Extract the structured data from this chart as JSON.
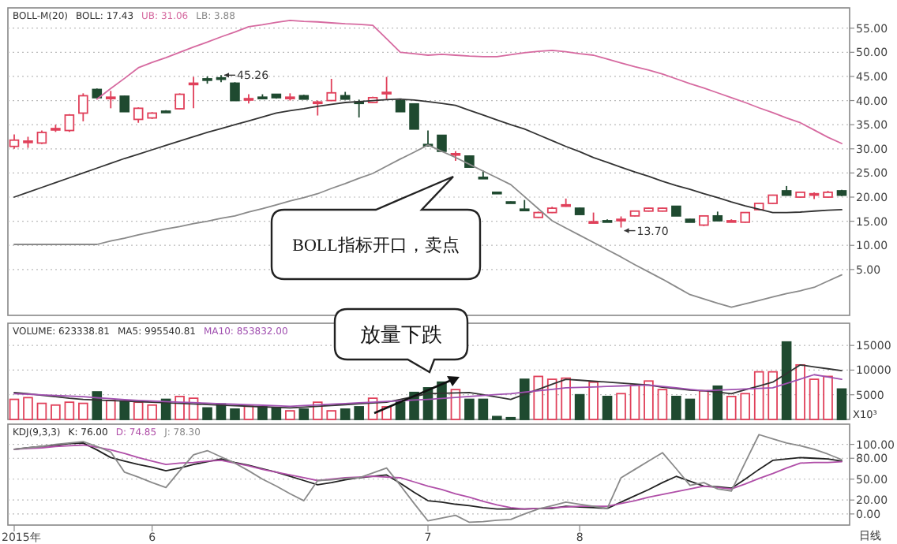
{
  "chart_data": [
    {
      "type": "candlestick",
      "title": "BOLL-M(20)",
      "legend": "top left",
      "tick_labels": "y",
      "grid": "y",
      "categories": [
        null,
        null,
        null,
        null,
        null,
        null,
        null,
        null,
        null,
        null,
        null,
        null,
        null,
        null,
        null,
        null,
        null,
        null,
        null,
        null,
        null,
        null,
        null,
        null,
        null,
        null,
        null,
        null,
        null,
        null,
        null,
        null,
        null,
        null,
        null,
        null,
        null,
        null,
        null,
        null,
        null,
        null,
        null,
        null,
        null,
        null,
        null,
        null,
        null,
        null,
        null,
        null,
        null,
        null,
        null,
        null,
        null,
        null,
        null,
        null,
        null
      ],
      "ohlc": [
        [
          30.5,
          33,
          30,
          31.8
        ],
        [
          31.4,
          32.5,
          30.2,
          31.6
        ],
        [
          31.2,
          33.8,
          31,
          33.4
        ],
        [
          34,
          35,
          33.5,
          34.2
        ],
        [
          33.8,
          37.2,
          33.5,
          37
        ],
        [
          37.4,
          41.5,
          35.7,
          41
        ],
        [
          42.3,
          42.5,
          40.6,
          40.6
        ],
        [
          40.5,
          42,
          38.4,
          40.7
        ],
        [
          40.9,
          41,
          37.7,
          37.7
        ],
        [
          36.1,
          38.6,
          35.4,
          38.4
        ],
        [
          36.4,
          37.6,
          36.2,
          37.4
        ],
        [
          37.8,
          38,
          37.5,
          37.7
        ],
        [
          38.3,
          41.5,
          38.2,
          41.3
        ],
        [
          43.4,
          44.9,
          38.4,
          43.6
        ],
        [
          44.5,
          45,
          43.5,
          44.4
        ],
        [
          44.7,
          45.26,
          43.8,
          44.6
        ],
        [
          43.6,
          43.8,
          40,
          40
        ],
        [
          40.2,
          41.3,
          39.4,
          40.4
        ],
        [
          40.7,
          41.3,
          40.4,
          40.6
        ],
        [
          41.3,
          41.4,
          40.4,
          40.6
        ],
        [
          40.5,
          41.5,
          40,
          40.7
        ],
        [
          41,
          41.2,
          40.3,
          40.3
        ],
        [
          39.5,
          40,
          36.9,
          39.7
        ],
        [
          40,
          44.5,
          39.9,
          41.6
        ],
        [
          41,
          41.8,
          40.2,
          40.3
        ],
        [
          39.7,
          40.2,
          36.5,
          39.6
        ],
        [
          39.6,
          40.8,
          39.5,
          40.6
        ],
        [
          41.5,
          44.9,
          40.3,
          41.7
        ],
        [
          40,
          40.2,
          37.7,
          37.7
        ],
        [
          39.3,
          39.4,
          34.1,
          34.1
        ],
        [
          30.9,
          33.8,
          30.7,
          30.8
        ],
        [
          32.8,
          32.9,
          29.5,
          29.5
        ],
        [
          28.9,
          29.5,
          27.5,
          29
        ],
        [
          28.5,
          28.6,
          26.2,
          26.2
        ],
        [
          24.1,
          25.5,
          24,
          24
        ],
        [
          21,
          21.1,
          20.9,
          21
        ],
        [
          19,
          19.1,
          18.9,
          19
        ],
        [
          17.5,
          19.4,
          17.3,
          17.4
        ],
        [
          15.8,
          17,
          15.7,
          16.8
        ],
        [
          16.8,
          18,
          16.7,
          17.7
        ],
        [
          18.3,
          19.7,
          18,
          18.4
        ],
        [
          17.7,
          17.8,
          16.4,
          16.4
        ],
        [
          14.8,
          16.8,
          14.7,
          14.9
        ],
        [
          15.1,
          15.4,
          15,
          15.1
        ],
        [
          15.3,
          16,
          13.7,
          15.4
        ],
        [
          16.1,
          17.2,
          16,
          17.1
        ],
        [
          17.1,
          17.8,
          17,
          17.7
        ],
        [
          17.1,
          17.8,
          17,
          17.7
        ],
        [
          18.1,
          18.2,
          16.1,
          16.1
        ],
        [
          15.4,
          15.5,
          14.8,
          14.8
        ],
        [
          14.2,
          16.2,
          14,
          16.1
        ],
        [
          16.1,
          17,
          15,
          15.1
        ],
        [
          15,
          15.4,
          14.8,
          15.1
        ],
        [
          14.8,
          16.9,
          14.7,
          16.8
        ],
        [
          17.4,
          18.8,
          17.3,
          18.7
        ],
        [
          18.7,
          20.5,
          18.6,
          20.4
        ],
        [
          21.3,
          22.3,
          20.3,
          20.4
        ],
        [
          20,
          21.1,
          19.9,
          21
        ],
        [
          20.6,
          21,
          19.6,
          20.7
        ],
        [
          20,
          21.3,
          19.9,
          21
        ],
        [
          21.3,
          21.5,
          20.2,
          20.4
        ]
      ],
      "colors": [
        "#e0405a",
        "#e0405a",
        "#e0405a",
        "#e0405a",
        "#e0405a",
        "#e0405a",
        "#1f4a30",
        "#e0405a",
        "#1f4a30",
        "#e0405a",
        "#e0405a",
        "#1f4a30",
        "#e0405a",
        "#e0405a",
        "#1f4a30",
        "#1f4a30",
        "#1f4a30",
        "#e0405a",
        "#1f4a30",
        "#1f4a30",
        "#e0405a",
        "#1f4a30",
        "#e0405a",
        "#e0405a",
        "#1f4a30",
        "#1f4a30",
        "#e0405a",
        "#e0405a",
        "#1f4a30",
        "#1f4a30",
        "#1f4a30",
        "#1f4a30",
        "#e0405a",
        "#1f4a30",
        "#1f4a30",
        "#1f4a30",
        "#1f4a30",
        "#1f4a30",
        "#e0405a",
        "#e0405a",
        "#e0405a",
        "#1f4a30",
        "#e0405a",
        "#1f4a30",
        "#e0405a",
        "#e0405a",
        "#e0405a",
        "#e0405a",
        "#1f4a30",
        "#1f4a30",
        "#e0405a",
        "#1f4a30",
        "#e0405a",
        "#e0405a",
        "#e0405a",
        "#e0405a",
        "#1f4a30",
        "#e0405a",
        "#e0405a",
        "#e0405a",
        "#1f4a30"
      ],
      "series": [
        {
          "name": "BOLL: 17.43",
          "type": "line",
          "color": "#333333",
          "values": [
            20,
            21,
            22,
            23,
            24,
            25,
            26,
            27,
            28,
            28.9,
            29.8,
            30.7,
            31.6,
            32.5,
            33.4,
            34.2,
            35,
            35.8,
            36.6,
            37.4,
            37.9,
            38.3,
            38.8,
            39.2,
            39.6,
            39.8,
            40,
            40.2,
            40.3,
            40.1,
            39.8,
            39.4,
            39,
            38,
            37,
            36,
            35,
            34.1,
            32.9,
            31.7,
            30.5,
            29.4,
            28.2,
            27.2,
            26.2,
            25.2,
            24.3,
            23.3,
            22.4,
            21.6,
            20.7,
            19.9,
            19,
            18.2,
            17.5,
            16.8,
            16.8,
            16.9,
            17.1,
            17.3,
            17.4
          ]
        },
        {
          "name": "UB: 31.06",
          "type": "line",
          "color": "#d66aa0",
          "values": [
            null,
            null,
            null,
            null,
            null,
            null,
            40.3,
            42.5,
            44.6,
            46.8,
            47.9,
            48.9,
            50,
            51.1,
            52.1,
            53.2,
            54.2,
            55.3,
            55.7,
            56.2,
            56.6,
            56.4,
            56.3,
            56.1,
            55.9,
            55.8,
            55.6,
            52.8,
            50,
            49.7,
            49.4,
            49.6,
            49.4,
            49.2,
            49.1,
            49.1,
            49.5,
            49.9,
            50.2,
            50.4,
            50.1,
            49.7,
            49.4,
            48.6,
            47.8,
            47,
            46.3,
            45.5,
            44.5,
            43.5,
            42.6,
            41.6,
            40.6,
            39.6,
            38.5,
            37.5,
            36.4,
            35.4,
            33.9,
            32.4,
            31.1
          ]
        },
        {
          "name": "LB: 3.88",
          "type": "line",
          "color": "#8a8a8a",
          "values": [
            10.2,
            10.2,
            10.2,
            10.2,
            10.2,
            10.2,
            10.2,
            10.9,
            11.5,
            12.2,
            12.8,
            13.4,
            13.9,
            14.5,
            15,
            15.6,
            16.1,
            16.9,
            17.6,
            18.4,
            19.2,
            19.9,
            20.7,
            21.8,
            22.8,
            23.9,
            24.9,
            26.4,
            27.9,
            29.3,
            30.8,
            29.5,
            28.2,
            26.8,
            25.4,
            24,
            22.6,
            20.1,
            17.6,
            15.1,
            13.6,
            12.1,
            10.6,
            9.1,
            7.6,
            6,
            4.5,
            3,
            1.4,
            -0.2,
            -1.1,
            -2,
            -2.8,
            -2.1,
            -1.4,
            -0.7,
            0,
            0.6,
            1.3,
            2.6,
            3.9
          ]
        }
      ],
      "ylim": [
        -4.5,
        59.2
      ],
      "yticks": [
        {
          "value": 5,
          "label": "5.00"
        },
        {
          "value": 10,
          "label": "10.00"
        },
        {
          "value": 15,
          "label": "15.00"
        },
        {
          "value": 20,
          "label": "20.00"
        },
        {
          "value": 25,
          "label": "25.00"
        },
        {
          "value": 30,
          "label": "30.00"
        },
        {
          "value": 35,
          "label": "35.00"
        },
        {
          "value": 40,
          "label": "40.00"
        },
        {
          "value": 45,
          "label": "45.00"
        },
        {
          "value": 50,
          "label": "50.00"
        },
        {
          "value": 55,
          "label": "55.00"
        }
      ],
      "annotations": [
        "BOLL指标开口，卖点",
        "45.26",
        "13.70"
      ]
    },
    {
      "type": "bar",
      "title": "VOLUME: 623338.81",
      "legend": "top left",
      "tick_labels": "y",
      "grid": "y",
      "categories": [
        null,
        null,
        null,
        null,
        null,
        null,
        null,
        null,
        null,
        null,
        null,
        null,
        null,
        null,
        null,
        null,
        null,
        null,
        null,
        null,
        null,
        null,
        null,
        null,
        null,
        null,
        null,
        null,
        null,
        null,
        null,
        null,
        null,
        null,
        null,
        null,
        null,
        null,
        null,
        null,
        null,
        null,
        null,
        null,
        null,
        null,
        null,
        null,
        null,
        null,
        null,
        null,
        null,
        null,
        null,
        null,
        null,
        null,
        null,
        null,
        null
      ],
      "values": [
        4070,
        4420,
        3260,
        2910,
        3490,
        3260,
        5580,
        3840,
        3720,
        3490,
        2910,
        4070,
        4650,
        4300,
        2330,
        3140,
        2090,
        2670,
        2560,
        2330,
        1740,
        2090,
        3490,
        1740,
        2090,
        2560,
        4300,
        2560,
        3490,
        5470,
        6400,
        7560,
        6050,
        4070,
        4070,
        580,
        350,
        8140,
        8720,
        8140,
        8370,
        5000,
        7560,
        4650,
        5230,
        6980,
        7790,
        6050,
        4650,
        4070,
        5810,
        6740,
        4650,
        5230,
        9650,
        9650,
        15700,
        11050,
        8140,
        8720,
        6160
      ],
      "colors": [
        "#e0405a",
        "#e0405a",
        "#e0405a",
        "#e0405a",
        "#e0405a",
        "#e0405a",
        "#1f4a30",
        "#e0405a",
        "#1f4a30",
        "#e0405a",
        "#e0405a",
        "#1f4a30",
        "#e0405a",
        "#e0405a",
        "#1f4a30",
        "#1f4a30",
        "#1f4a30",
        "#e0405a",
        "#1f4a30",
        "#1f4a30",
        "#e0405a",
        "#1f4a30",
        "#e0405a",
        "#e0405a",
        "#1f4a30",
        "#1f4a30",
        "#e0405a",
        "#e0405a",
        "#1f4a30",
        "#1f4a30",
        "#1f4a30",
        "#1f4a30",
        "#e0405a",
        "#1f4a30",
        "#1f4a30",
        "#1f4a30",
        "#1f4a30",
        "#1f4a30",
        "#e0405a",
        "#e0405a",
        "#e0405a",
        "#1f4a30",
        "#e0405a",
        "#1f4a30",
        "#e0405a",
        "#e0405a",
        "#e0405a",
        "#e0405a",
        "#1f4a30",
        "#1f4a30",
        "#e0405a",
        "#1f4a30",
        "#e0405a",
        "#e0405a",
        "#e0405a",
        "#e0405a",
        "#1f4a30",
        "#e0405a",
        "#e0405a",
        "#e0405a",
        "#1f4a30"
      ],
      "series": [
        {
          "name": "MA5: 995540.81",
          "type": "line",
          "color": "#333333",
          "values": [
            5470,
            5200,
            4900,
            4600,
            4300,
            4070,
            3950,
            3830,
            3720,
            3600,
            3490,
            3370,
            3260,
            3140,
            3030,
            2910,
            2790,
            2680,
            2560,
            2450,
            2330,
            2500,
            2670,
            2820,
            3000,
            3160,
            3330,
            3490,
            4070,
            4650,
            5230,
            5310,
            5390,
            5470,
            5000,
            4540,
            4070,
            5090,
            6110,
            7120,
            8140,
            7950,
            7750,
            7560,
            7370,
            7170,
            6980,
            6550,
            6250,
            5950,
            5810,
            5520,
            5230,
            6010,
            6780,
            7560,
            9300,
            11050,
            10660,
            10270,
            9880
          ]
        },
        {
          "name": "MA10: 853832.00",
          "type": "line",
          "color": "#a050b0",
          "values": [
            5230,
            5110,
            4990,
            4860,
            4730,
            4600,
            4400,
            4200,
            4000,
            3850,
            3720,
            3610,
            3500,
            3400,
            3290,
            3190,
            3080,
            2980,
            2880,
            2770,
            2670,
            2810,
            2950,
            3090,
            3230,
            3370,
            3510,
            3650,
            3790,
            3930,
            4070,
            4260,
            4460,
            4650,
            4840,
            5040,
            5230,
            5520,
            5810,
            6110,
            6400,
            6500,
            6590,
            6690,
            6790,
            6880,
            6980,
            6690,
            6400,
            6100,
            5810,
            5930,
            6050,
            6160,
            6280,
            6400,
            7290,
            8180,
            9070,
            8600,
            8140
          ]
        }
      ],
      "ylim": [
        0,
        19500
      ],
      "yticks": [
        5000,
        10000,
        15000
      ],
      "annotations": [
        "放量下跌",
        "X10³"
      ]
    },
    {
      "type": "line",
      "title": "KDJ(9,3,3)",
      "legend": "top left",
      "grid": "y",
      "categories": [
        "2015年",
        null,
        null,
        null,
        null,
        null,
        null,
        null,
        null,
        null,
        "6",
        null,
        null,
        null,
        null,
        null,
        null,
        null,
        null,
        null,
        null,
        null,
        null,
        null,
        null,
        null,
        null,
        null,
        null,
        null,
        "7",
        null,
        null,
        null,
        null,
        null,
        null,
        null,
        null,
        null,
        null,
        "8",
        null,
        null,
        null,
        null,
        null,
        null,
        null,
        null,
        null,
        null,
        null,
        null,
        null,
        null,
        null,
        null,
        null,
        null,
        null
      ],
      "series": [
        {
          "name": "K: 76.00",
          "color": "#222222",
          "values": [
            93,
            95,
            97,
            99,
            101,
            102,
            92,
            81,
            76,
            71,
            67,
            62,
            66,
            71,
            75,
            79,
            74,
            70,
            65,
            60,
            54,
            48,
            42,
            45,
            49,
            52,
            54,
            56,
            44,
            31,
            19,
            17,
            14,
            12,
            9,
            7,
            7,
            7,
            8,
            8,
            11,
            10,
            9,
            8,
            17,
            26,
            35,
            45,
            54,
            47,
            40,
            39,
            37,
            50,
            64,
            77,
            79,
            81,
            80,
            79,
            76
          ]
        },
        {
          "name": "D: 74.85",
          "color": "#b04fa8",
          "values": [
            93,
            94,
            95,
            97,
            98,
            99,
            96,
            92,
            87,
            81,
            76,
            71,
            73,
            74,
            76,
            77,
            73,
            69,
            64,
            60,
            56,
            52,
            48,
            50,
            52,
            53,
            54,
            53,
            52,
            46,
            40,
            35,
            29,
            24,
            18,
            13,
            9,
            7,
            8,
            9,
            10,
            11,
            11,
            11,
            15,
            19,
            24,
            28,
            32,
            36,
            40,
            38,
            36,
            43,
            51,
            58,
            66,
            73,
            74,
            74,
            75
          ]
        },
        {
          "name": "J: 78.30",
          "color": "#8a8a8a",
          "values": [
            93,
            95,
            97,
            100,
            102,
            104,
            97,
            89,
            60,
            53,
            45,
            38,
            62,
            85,
            91,
            82,
            73,
            62,
            50,
            40,
            29,
            19,
            48,
            49,
            51,
            52,
            59,
            66,
            41,
            15,
            -10,
            -6,
            -2,
            -12,
            -11,
            -9,
            -8,
            0,
            7,
            12,
            17,
            14,
            11,
            8,
            52,
            64,
            76,
            88,
            65,
            41,
            45,
            36,
            33,
            74,
            114,
            108,
            102,
            98,
            93,
            86,
            78
          ]
        }
      ],
      "ylim": [
        -16,
        129
      ],
      "yticks": [
        {
          "value": 0,
          "label": "0.00"
        },
        {
          "value": 20,
          "label": "20.00"
        },
        {
          "value": 50,
          "label": "50.00"
        },
        {
          "value": 80,
          "label": "80.00"
        },
        {
          "value": 100,
          "label": "100.00"
        }
      ],
      "annotations": [
        "日线"
      ]
    }
  ]
}
